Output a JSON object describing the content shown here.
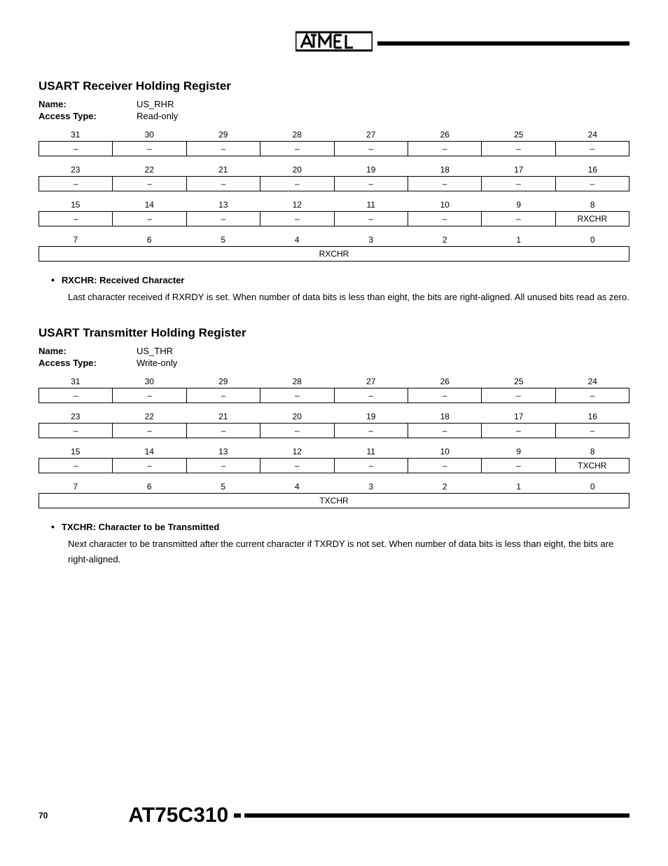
{
  "header": {
    "logo_text": "ATMEL"
  },
  "footer": {
    "page_number": "70",
    "part_number": "AT75C310"
  },
  "registers": [
    {
      "title": "USART Receiver Holding Register",
      "name_label": "Name:",
      "name_value": "US_RHR",
      "access_label": "Access Type:",
      "access_value": "Read-only",
      "rows": [
        {
          "bits": [
            "31",
            "30",
            "29",
            "28",
            "27",
            "26",
            "25",
            "24"
          ],
          "fields": [
            "–",
            "–",
            "–",
            "–",
            "–",
            "–",
            "–",
            "–"
          ]
        },
        {
          "bits": [
            "23",
            "22",
            "21",
            "20",
            "19",
            "18",
            "17",
            "16"
          ],
          "fields": [
            "–",
            "–",
            "–",
            "–",
            "–",
            "–",
            "–",
            "–"
          ]
        },
        {
          "bits": [
            "15",
            "14",
            "13",
            "12",
            "11",
            "10",
            "9",
            "8"
          ],
          "fields": [
            "–",
            "–",
            "–",
            "–",
            "–",
            "–",
            "–",
            "RXCHR"
          ]
        },
        {
          "bits": [
            "7",
            "6",
            "5",
            "4",
            "3",
            "2",
            "1",
            "0"
          ],
          "merged": "RXCHR"
        }
      ],
      "bullet": {
        "title": "RXCHR: Received Character",
        "text": "Last character received if RXRDY is set. When number of data bits is less than eight, the bits are right-aligned. All unused bits read as zero."
      }
    },
    {
      "title": "USART Transmitter Holding Register",
      "name_label": "Name:",
      "name_value": "US_THR",
      "access_label": "Access Type:",
      "access_value": "Write-only",
      "rows": [
        {
          "bits": [
            "31",
            "30",
            "29",
            "28",
            "27",
            "26",
            "25",
            "24"
          ],
          "fields": [
            "–",
            "–",
            "–",
            "–",
            "–",
            "–",
            "–",
            "–"
          ]
        },
        {
          "bits": [
            "23",
            "22",
            "21",
            "20",
            "19",
            "18",
            "17",
            "16"
          ],
          "fields": [
            "–",
            "–",
            "–",
            "–",
            "–",
            "–",
            "–",
            "–"
          ]
        },
        {
          "bits": [
            "15",
            "14",
            "13",
            "12",
            "11",
            "10",
            "9",
            "8"
          ],
          "fields": [
            "–",
            "–",
            "–",
            "–",
            "–",
            "–",
            "–",
            "TXCHR"
          ]
        },
        {
          "bits": [
            "7",
            "6",
            "5",
            "4",
            "3",
            "2",
            "1",
            "0"
          ],
          "merged": "TXCHR"
        }
      ],
      "bullet": {
        "title": "TXCHR: Character to be Transmitted",
        "text": "Next character to be transmitted after the current character if TXRDY is not set. When number of data bits is less than eight, the bits are right-aligned."
      }
    }
  ]
}
